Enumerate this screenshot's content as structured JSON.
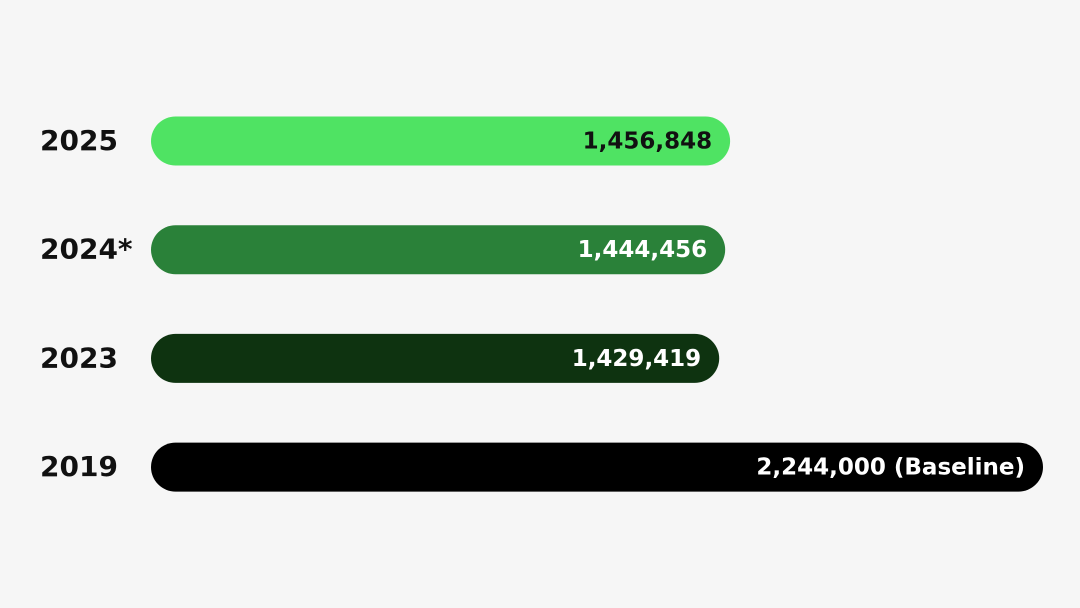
{
  "chart_data": {
    "type": "bar",
    "orientation": "horizontal",
    "categories": [
      "2025",
      "2024*",
      "2023",
      "2019"
    ],
    "values": [
      1456848,
      1444456,
      1429419,
      2244000
    ],
    "value_labels": [
      "1,456,848",
      "1,444,456",
      "1,429,419",
      "2,244,000 (Baseline)"
    ],
    "colors": [
      "#4fe363",
      "#2a8139",
      "#0e3310",
      "#000000"
    ]
  }
}
